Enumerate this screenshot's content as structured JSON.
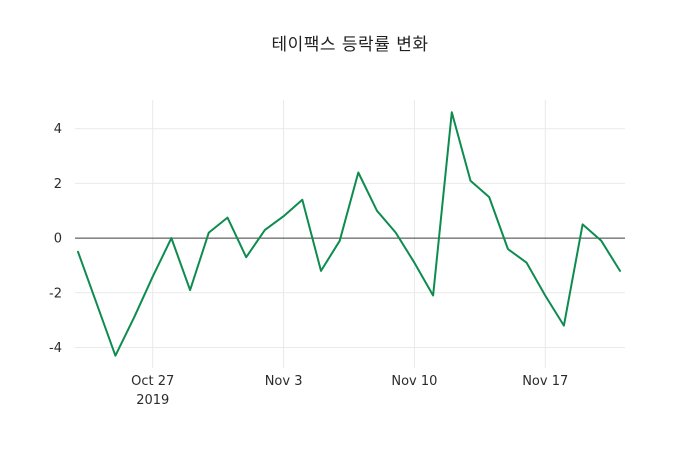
{
  "chart_data": {
    "type": "line",
    "title": "테이팩스 등락률 변화",
    "x": [
      "Oct 23",
      "Oct 24",
      "Oct 25",
      "Oct 26",
      "Oct 27",
      "Oct 28",
      "Oct 29",
      "Oct 30",
      "Oct 31",
      "Nov 1",
      "Nov 2",
      "Nov 3",
      "Nov 4",
      "Nov 5",
      "Nov 6",
      "Nov 7",
      "Nov 8",
      "Nov 9",
      "Nov 10",
      "Nov 11",
      "Nov 12",
      "Nov 13",
      "Nov 14",
      "Nov 15",
      "Nov 16",
      "Nov 17",
      "Nov 18",
      "Nov 19",
      "Nov 20",
      "Nov 21"
    ],
    "values": [
      -0.5,
      -2.4,
      -4.3,
      -2.9,
      -1.4,
      0.0,
      -1.9,
      0.2,
      0.75,
      -0.7,
      0.3,
      0.8,
      1.4,
      -1.2,
      -0.1,
      2.4,
      1.0,
      0.2,
      -0.9,
      -2.1,
      4.6,
      2.1,
      1.5,
      -0.4,
      -0.9,
      -2.1,
      -3.2,
      0.5,
      -0.1,
      -1.2
    ],
    "xlabel": "",
    "ylabel": "",
    "ylim": [
      -4.75,
      5.05
    ],
    "grid": true,
    "legend_position": "none",
    "xticks": [
      {
        "index": 4,
        "label": "Oct 27",
        "sublabel": "2019"
      },
      {
        "index": 11,
        "label": "Nov 3",
        "sublabel": ""
      },
      {
        "index": 18,
        "label": "Nov 10",
        "sublabel": ""
      },
      {
        "index": 25,
        "label": "Nov 17",
        "sublabel": ""
      }
    ],
    "yticks": [
      {
        "v": -4,
        "label": "-4"
      },
      {
        "v": -2,
        "label": "-2"
      },
      {
        "v": 0,
        "label": "0"
      },
      {
        "v": 2,
        "label": "2"
      },
      {
        "v": 4,
        "label": "4"
      }
    ]
  },
  "colors": {
    "line": "#0e8c50",
    "grid": "#e9e9e9",
    "zero_line": "#3c3c3c",
    "tick_text": "#2b2b2b",
    "background": "#ffffff"
  }
}
